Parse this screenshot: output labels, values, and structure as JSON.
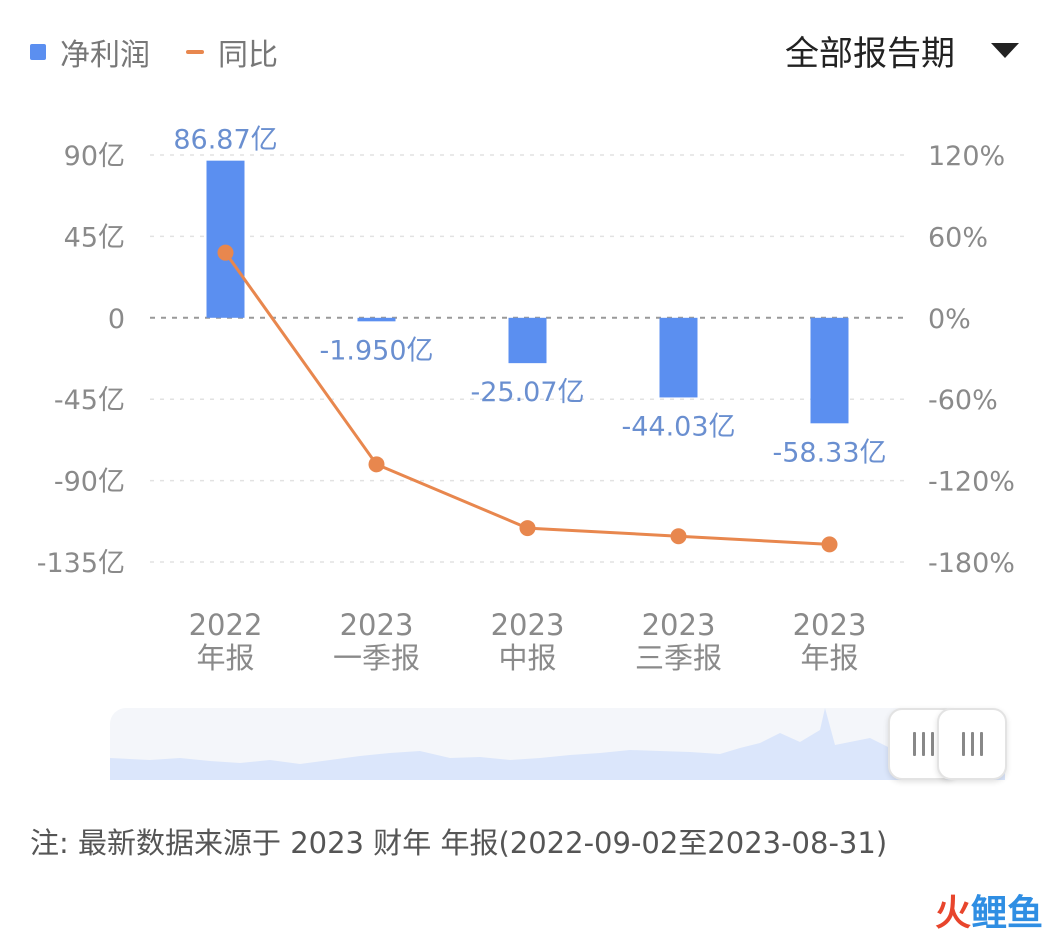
{
  "legend": {
    "bar_label": "净利润",
    "line_label": "同比"
  },
  "period_select": {
    "label": "全部报告期"
  },
  "chart_data": {
    "type": "bar",
    "categories": [
      [
        "2022",
        "年报"
      ],
      [
        "2023",
        "一季报"
      ],
      [
        "2023",
        "中报"
      ],
      [
        "2023",
        "三季报"
      ],
      [
        "2023",
        "年报"
      ]
    ],
    "series": [
      {
        "name": "净利润",
        "type": "bar",
        "axis": "left",
        "values": [
          86.87,
          -1.95,
          -25.07,
          -44.03,
          -58.33
        ],
        "labels": [
          "86.87亿",
          "-1.950亿",
          "-25.07亿",
          "-44.03亿",
          "-58.33亿"
        ],
        "color": "#5b8ff0"
      },
      {
        "name": "同比",
        "type": "line",
        "axis": "right",
        "values": [
          48,
          -108,
          -155,
          -161,
          -167
        ],
        "color": "#e8874e"
      }
    ],
    "y_left": {
      "ylim": [
        -135,
        90
      ],
      "ticks": [
        90,
        45,
        0,
        -45,
        -90,
        -135
      ],
      "tick_labels": [
        "90亿",
        "45亿",
        "0",
        "-45亿",
        "-90亿",
        "-135亿"
      ]
    },
    "y_right": {
      "ylim": [
        -180,
        120
      ],
      "ticks": [
        120,
        60,
        0,
        -60,
        -120,
        -180
      ],
      "tick_labels": [
        "120%",
        "60%",
        "0%",
        "-60%",
        "-120%",
        "-180%"
      ]
    },
    "grid": true,
    "legend_position": "top-left",
    "label_color": "#6a8fd0"
  },
  "slider": {
    "fill_color": "#dbe6fb"
  },
  "note": "注: 最新数据来源于 2023 财年 年报(2022-09-02至2023-08-31)",
  "watermark": {
    "part1": "火",
    "part2": "鲤鱼"
  }
}
